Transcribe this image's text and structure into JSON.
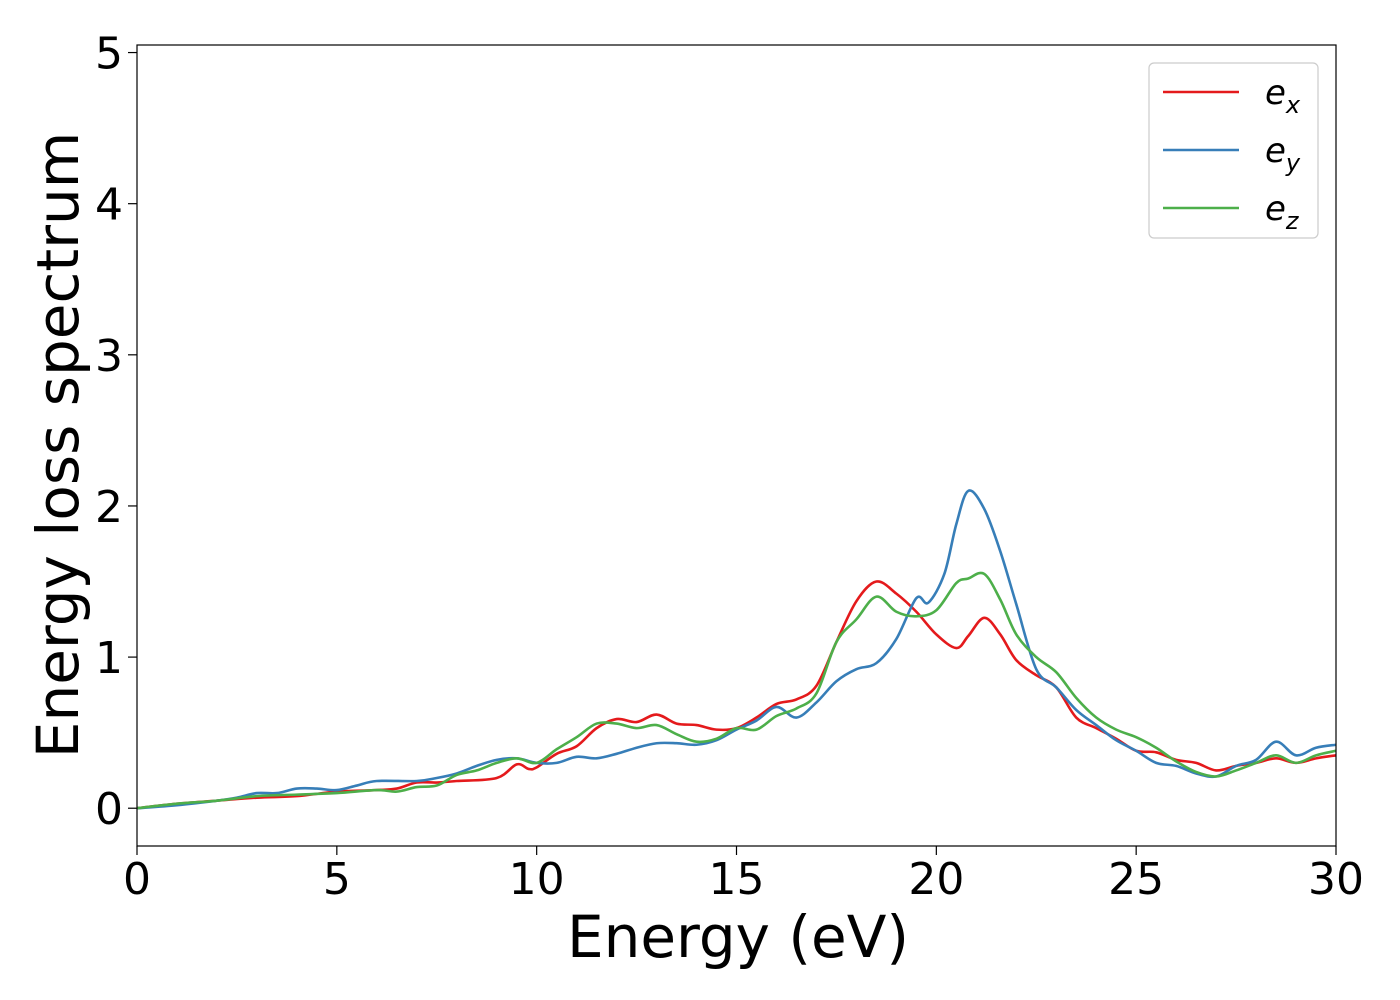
{
  "chart_data": {
    "type": "line",
    "title": "",
    "xlabel": "Energy (eV)",
    "ylabel": "Energy loss spectrum",
    "xlim": [
      0,
      30
    ],
    "ylim": [
      -0.25,
      5.05
    ],
    "xticks": [
      0,
      5,
      10,
      15,
      20,
      25,
      30
    ],
    "yticks": [
      0,
      1,
      2,
      3,
      4,
      5
    ],
    "grid": false,
    "legend_position": "top-right",
    "series": [
      {
        "name": "e",
        "subscript": "x",
        "color": "#e41a1c",
        "points": [
          [
            0,
            0.0
          ],
          [
            1,
            0.03
          ],
          [
            2,
            0.05
          ],
          [
            3,
            0.07
          ],
          [
            4,
            0.08
          ],
          [
            5,
            0.11
          ],
          [
            6,
            0.12
          ],
          [
            6.5,
            0.13
          ],
          [
            7,
            0.17
          ],
          [
            7.5,
            0.17
          ],
          [
            8,
            0.18
          ],
          [
            9,
            0.2
          ],
          [
            9.5,
            0.29
          ],
          [
            9.8,
            0.26
          ],
          [
            10,
            0.27
          ],
          [
            10.5,
            0.36
          ],
          [
            11,
            0.41
          ],
          [
            11.5,
            0.53
          ],
          [
            12,
            0.59
          ],
          [
            12.5,
            0.57
          ],
          [
            13,
            0.62
          ],
          [
            13.5,
            0.56
          ],
          [
            14,
            0.55
          ],
          [
            14.5,
            0.52
          ],
          [
            15,
            0.53
          ],
          [
            15.5,
            0.6
          ],
          [
            16,
            0.69
          ],
          [
            16.5,
            0.72
          ],
          [
            17,
            0.81
          ],
          [
            17.5,
            1.1
          ],
          [
            18,
            1.37
          ],
          [
            18.5,
            1.5
          ],
          [
            19,
            1.42
          ],
          [
            19.5,
            1.3
          ],
          [
            20,
            1.15
          ],
          [
            20.5,
            1.06
          ],
          [
            20.8,
            1.14
          ],
          [
            21.2,
            1.26
          ],
          [
            21.6,
            1.15
          ],
          [
            22,
            0.98
          ],
          [
            22.5,
            0.88
          ],
          [
            23,
            0.8
          ],
          [
            23.5,
            0.6
          ],
          [
            24,
            0.53
          ],
          [
            24.5,
            0.46
          ],
          [
            25,
            0.38
          ],
          [
            25.5,
            0.37
          ],
          [
            26,
            0.32
          ],
          [
            26.5,
            0.3
          ],
          [
            27,
            0.25
          ],
          [
            27.5,
            0.28
          ],
          [
            28,
            0.3
          ],
          [
            28.5,
            0.33
          ],
          [
            29,
            0.3
          ],
          [
            29.5,
            0.33
          ],
          [
            30,
            0.35
          ]
        ]
      },
      {
        "name": "e",
        "subscript": "y",
        "color": "#377eb8",
        "points": [
          [
            0,
            0.0
          ],
          [
            1,
            0.02
          ],
          [
            2,
            0.05
          ],
          [
            2.5,
            0.07
          ],
          [
            3,
            0.1
          ],
          [
            3.5,
            0.1
          ],
          [
            4,
            0.13
          ],
          [
            4.5,
            0.13
          ],
          [
            5,
            0.12
          ],
          [
            5.5,
            0.15
          ],
          [
            6,
            0.18
          ],
          [
            7,
            0.18
          ],
          [
            7.5,
            0.2
          ],
          [
            8,
            0.23
          ],
          [
            8.5,
            0.28
          ],
          [
            9,
            0.32
          ],
          [
            9.5,
            0.33
          ],
          [
            10,
            0.3
          ],
          [
            10.5,
            0.3
          ],
          [
            11,
            0.34
          ],
          [
            11.5,
            0.33
          ],
          [
            12,
            0.36
          ],
          [
            12.5,
            0.4
          ],
          [
            13,
            0.43
          ],
          [
            13.5,
            0.43
          ],
          [
            14,
            0.42
          ],
          [
            14.5,
            0.45
          ],
          [
            15,
            0.52
          ],
          [
            15.5,
            0.58
          ],
          [
            16,
            0.67
          ],
          [
            16.5,
            0.6
          ],
          [
            17,
            0.7
          ],
          [
            17.5,
            0.84
          ],
          [
            18,
            0.92
          ],
          [
            18.5,
            0.96
          ],
          [
            19,
            1.12
          ],
          [
            19.5,
            1.39
          ],
          [
            19.8,
            1.36
          ],
          [
            20.2,
            1.55
          ],
          [
            20.5,
            1.88
          ],
          [
            20.8,
            2.1
          ],
          [
            21.2,
            1.98
          ],
          [
            21.6,
            1.7
          ],
          [
            22,
            1.35
          ],
          [
            22.5,
            0.92
          ],
          [
            23,
            0.8
          ],
          [
            23.5,
            0.65
          ],
          [
            24,
            0.55
          ],
          [
            24.5,
            0.45
          ],
          [
            25,
            0.38
          ],
          [
            25.5,
            0.3
          ],
          [
            26,
            0.28
          ],
          [
            26.5,
            0.23
          ],
          [
            27,
            0.21
          ],
          [
            27.5,
            0.28
          ],
          [
            28,
            0.32
          ],
          [
            28.5,
            0.44
          ],
          [
            29,
            0.35
          ],
          [
            29.5,
            0.4
          ],
          [
            30,
            0.42
          ]
        ]
      },
      {
        "name": "e",
        "subscript": "z",
        "color": "#4daf4a",
        "points": [
          [
            0,
            0.0
          ],
          [
            1,
            0.03
          ],
          [
            2,
            0.05
          ],
          [
            3,
            0.08
          ],
          [
            4,
            0.09
          ],
          [
            5,
            0.1
          ],
          [
            6,
            0.12
          ],
          [
            6.5,
            0.11
          ],
          [
            7,
            0.14
          ],
          [
            7.5,
            0.15
          ],
          [
            8,
            0.22
          ],
          [
            8.5,
            0.25
          ],
          [
            9,
            0.3
          ],
          [
            9.5,
            0.33
          ],
          [
            10,
            0.3
          ],
          [
            10.5,
            0.39
          ],
          [
            11,
            0.47
          ],
          [
            11.5,
            0.56
          ],
          [
            12,
            0.56
          ],
          [
            12.5,
            0.53
          ],
          [
            13,
            0.55
          ],
          [
            13.5,
            0.49
          ],
          [
            14,
            0.44
          ],
          [
            14.5,
            0.46
          ],
          [
            15,
            0.53
          ],
          [
            15.5,
            0.52
          ],
          [
            16,
            0.61
          ],
          [
            16.5,
            0.66
          ],
          [
            17,
            0.76
          ],
          [
            17.5,
            1.1
          ],
          [
            18,
            1.25
          ],
          [
            18.5,
            1.4
          ],
          [
            19,
            1.3
          ],
          [
            19.5,
            1.27
          ],
          [
            20,
            1.31
          ],
          [
            20.5,
            1.49
          ],
          [
            20.8,
            1.52
          ],
          [
            21.2,
            1.55
          ],
          [
            21.6,
            1.38
          ],
          [
            22,
            1.15
          ],
          [
            22.5,
            1.0
          ],
          [
            23,
            0.9
          ],
          [
            23.5,
            0.73
          ],
          [
            24,
            0.6
          ],
          [
            24.5,
            0.52
          ],
          [
            25,
            0.47
          ],
          [
            25.5,
            0.4
          ],
          [
            26,
            0.31
          ],
          [
            26.5,
            0.24
          ],
          [
            27,
            0.21
          ],
          [
            27.5,
            0.25
          ],
          [
            28,
            0.3
          ],
          [
            28.5,
            0.35
          ],
          [
            29,
            0.3
          ],
          [
            29.5,
            0.35
          ],
          [
            30,
            0.38
          ]
        ]
      }
    ]
  }
}
